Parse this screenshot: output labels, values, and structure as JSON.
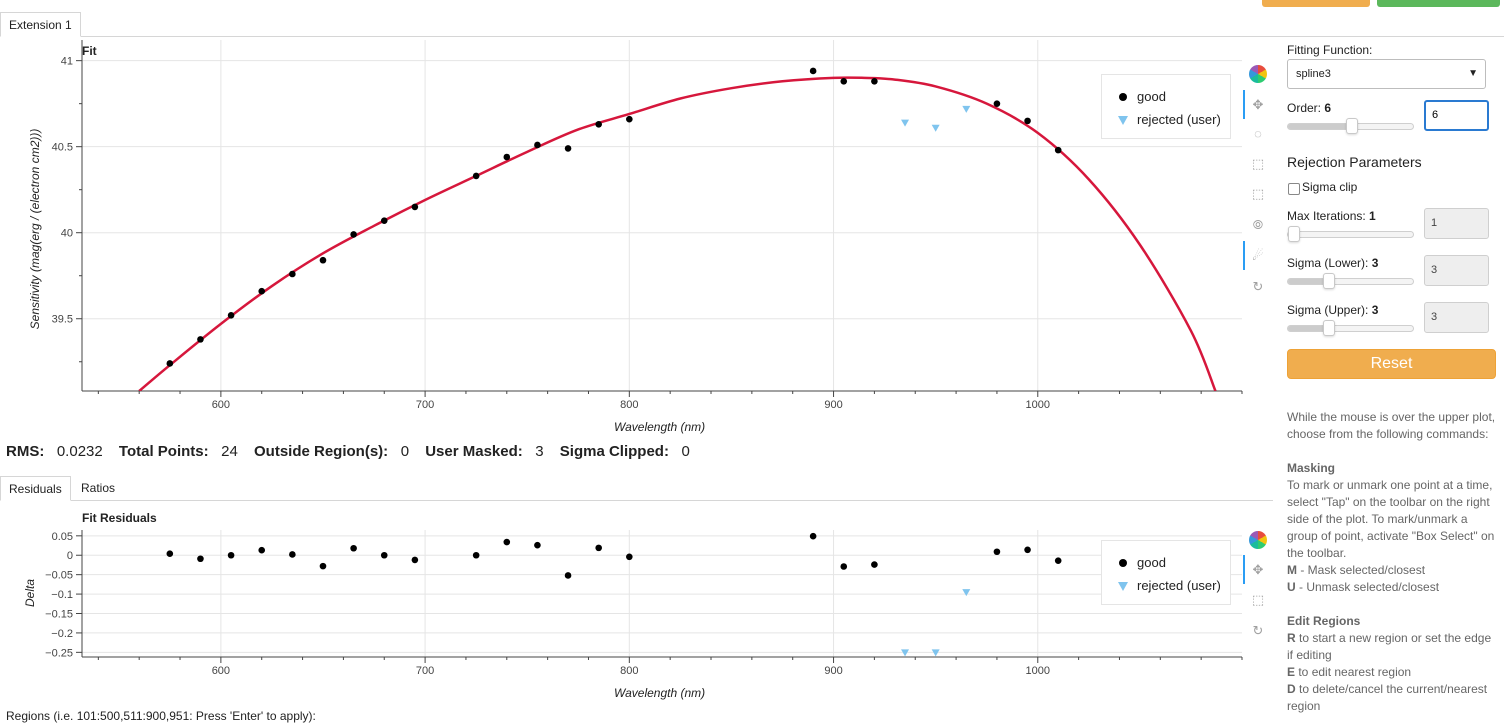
{
  "tabs": {
    "extension": "Extension 1"
  },
  "fit_plot": {
    "title": "Fit",
    "xlabel": "Wavelength (nm)",
    "ylabel": "Sensitivity (mag(erg / (electron cm2)))",
    "legend": {
      "good": "good",
      "rejected": "rejected (user)"
    }
  },
  "stats": {
    "rms_label": "RMS:",
    "rms_value": "0.0232",
    "total_label": "Total Points:",
    "total_value": "24",
    "outside_label": "Outside Region(s):",
    "outside_value": "0",
    "masked_label": "User Masked:",
    "masked_value": "3",
    "clipped_label": "Sigma Clipped:",
    "clipped_value": "0"
  },
  "lower_tabs": {
    "residuals": "Residuals",
    "ratios": "Ratios"
  },
  "resid_plot": {
    "title": "Fit Residuals",
    "xlabel": "Wavelength (nm)",
    "ylabel": "Delta",
    "legend": {
      "good": "good",
      "rejected": "rejected (user)"
    }
  },
  "sidebar": {
    "fitting_function_label": "Fitting Function:",
    "fitting_function_value": "spline3",
    "order_label": "Order:",
    "order_value": "6",
    "order_input": "6",
    "rejection_title": "Rejection Parameters",
    "sigma_clip_label": "Sigma clip",
    "max_iter_label": "Max Iterations:",
    "max_iter_value": "1",
    "max_iter_input": "1",
    "sigma_lower_label": "Sigma (Lower):",
    "sigma_lower_value": "3",
    "sigma_lower_input": "3",
    "sigma_upper_label": "Sigma (Upper):",
    "sigma_upper_value": "3",
    "sigma_upper_input": "3",
    "reset_label": "Reset",
    "slider_levels": {
      "order": 0.5,
      "max_iter": 0.0,
      "sigma_lower": 0.3,
      "sigma_upper": 0.3
    }
  },
  "help": {
    "intro": "While the mouse is over the upper plot, choose from the following commands:",
    "masking_title": "Masking",
    "masking_text": "To mark or unmark one point at a time, select \"Tap\" on the toolbar on the right side of the plot. To mark/unmark a group of point, activate \"Box Select\" on the toolbar.",
    "m_key": "M",
    "m_text": " - Mask selected/closest",
    "u_key": "U",
    "u_text": " - Unmask selected/closest",
    "regions_title": "Edit Regions",
    "r_key": "R",
    "r_text": " to start a new region or set the edge if editing",
    "e_key": "E",
    "e_text": " to edit nearest region",
    "d_key": "D",
    "d_text": " to delete/cancel the current/nearest region"
  },
  "footer": {
    "regions_hint": "Regions (i.e. 101:500,511:900,951: Press 'Enter' to apply):"
  },
  "colors": {
    "fit_line": "#d6173c",
    "good": "#000000",
    "rejected": "#7fc4ee",
    "reset": "#f0ad4e",
    "accent": "#2a9df4"
  },
  "chart_data": [
    {
      "type": "scatter",
      "title": "Fit",
      "xlabel": "Wavelength (nm)",
      "ylabel": "Sensitivity (mag(erg / (electron cm2)))",
      "xlim": [
        532,
        1100
      ],
      "ylim": [
        39.08,
        41.12
      ],
      "xticks": [
        600,
        700,
        800,
        900,
        1000
      ],
      "yticks": [
        39.5,
        40,
        40.5,
        41
      ],
      "grid": true,
      "legend_position": "top-right",
      "series": [
        {
          "name": "good",
          "marker": "circle",
          "x": [
            575,
            590,
            605,
            620,
            635,
            650,
            665,
            680,
            695,
            725,
            740,
            755,
            770,
            785,
            800,
            890,
            905,
            920,
            980,
            995,
            1010
          ],
          "y": [
            39.24,
            39.38,
            39.52,
            39.66,
            39.76,
            39.84,
            39.99,
            40.07,
            40.15,
            40.33,
            40.44,
            40.51,
            40.49,
            40.63,
            40.66,
            40.94,
            40.88,
            40.88,
            40.75,
            40.65,
            40.48
          ]
        },
        {
          "name": "rejected (user)",
          "marker": "triangle",
          "x": [
            935,
            950,
            965
          ],
          "y": [
            40.64,
            40.61,
            40.72
          ]
        }
      ],
      "fit_curve": {
        "x": [
          560,
          575,
          600,
          625,
          650,
          675,
          700,
          725,
          750,
          775,
          800,
          825,
          850,
          875,
          900,
          915,
          930,
          950,
          975,
          1000,
          1025,
          1050,
          1075,
          1087
        ],
        "y": [
          39.08,
          39.23,
          39.47,
          39.69,
          39.88,
          40.04,
          40.19,
          40.33,
          40.47,
          40.6,
          40.69,
          40.78,
          40.84,
          40.88,
          40.9,
          40.9,
          40.89,
          40.85,
          40.75,
          40.58,
          40.31,
          39.93,
          39.43,
          39.08
        ]
      }
    },
    {
      "type": "scatter",
      "title": "Fit Residuals",
      "xlabel": "Wavelength (nm)",
      "ylabel": "Delta",
      "xlim": [
        532,
        1100
      ],
      "ylim": [
        -0.262,
        0.065
      ],
      "xticks": [
        600,
        700,
        800,
        900,
        1000
      ],
      "yticks": [
        0.05,
        0,
        -0.05,
        -0.1,
        -0.15,
        -0.2,
        -0.25
      ],
      "ytick_labels": [
        "0.05",
        "0",
        "−0.05",
        "−0.1",
        "−0.15",
        "−0.2",
        "−0.25"
      ],
      "grid": true,
      "legend_position": "top-right",
      "series": [
        {
          "name": "good",
          "marker": "circle",
          "x": [
            575,
            590,
            605,
            620,
            635,
            650,
            665,
            680,
            695,
            725,
            740,
            755,
            770,
            785,
            800,
            890,
            905,
            920,
            980,
            995,
            1010
          ],
          "y": [
            0.004,
            -0.009,
            0.0,
            0.013,
            0.002,
            -0.028,
            0.018,
            0.0,
            -0.012,
            0.0,
            0.034,
            0.026,
            -0.052,
            0.019,
            -0.004,
            0.049,
            -0.029,
            -0.024,
            0.009,
            0.014,
            -0.014
          ]
        },
        {
          "name": "rejected (user)",
          "marker": "triangle",
          "x": [
            935,
            950,
            965
          ],
          "y": [
            -0.25,
            -0.25,
            -0.095
          ]
        }
      ]
    }
  ]
}
